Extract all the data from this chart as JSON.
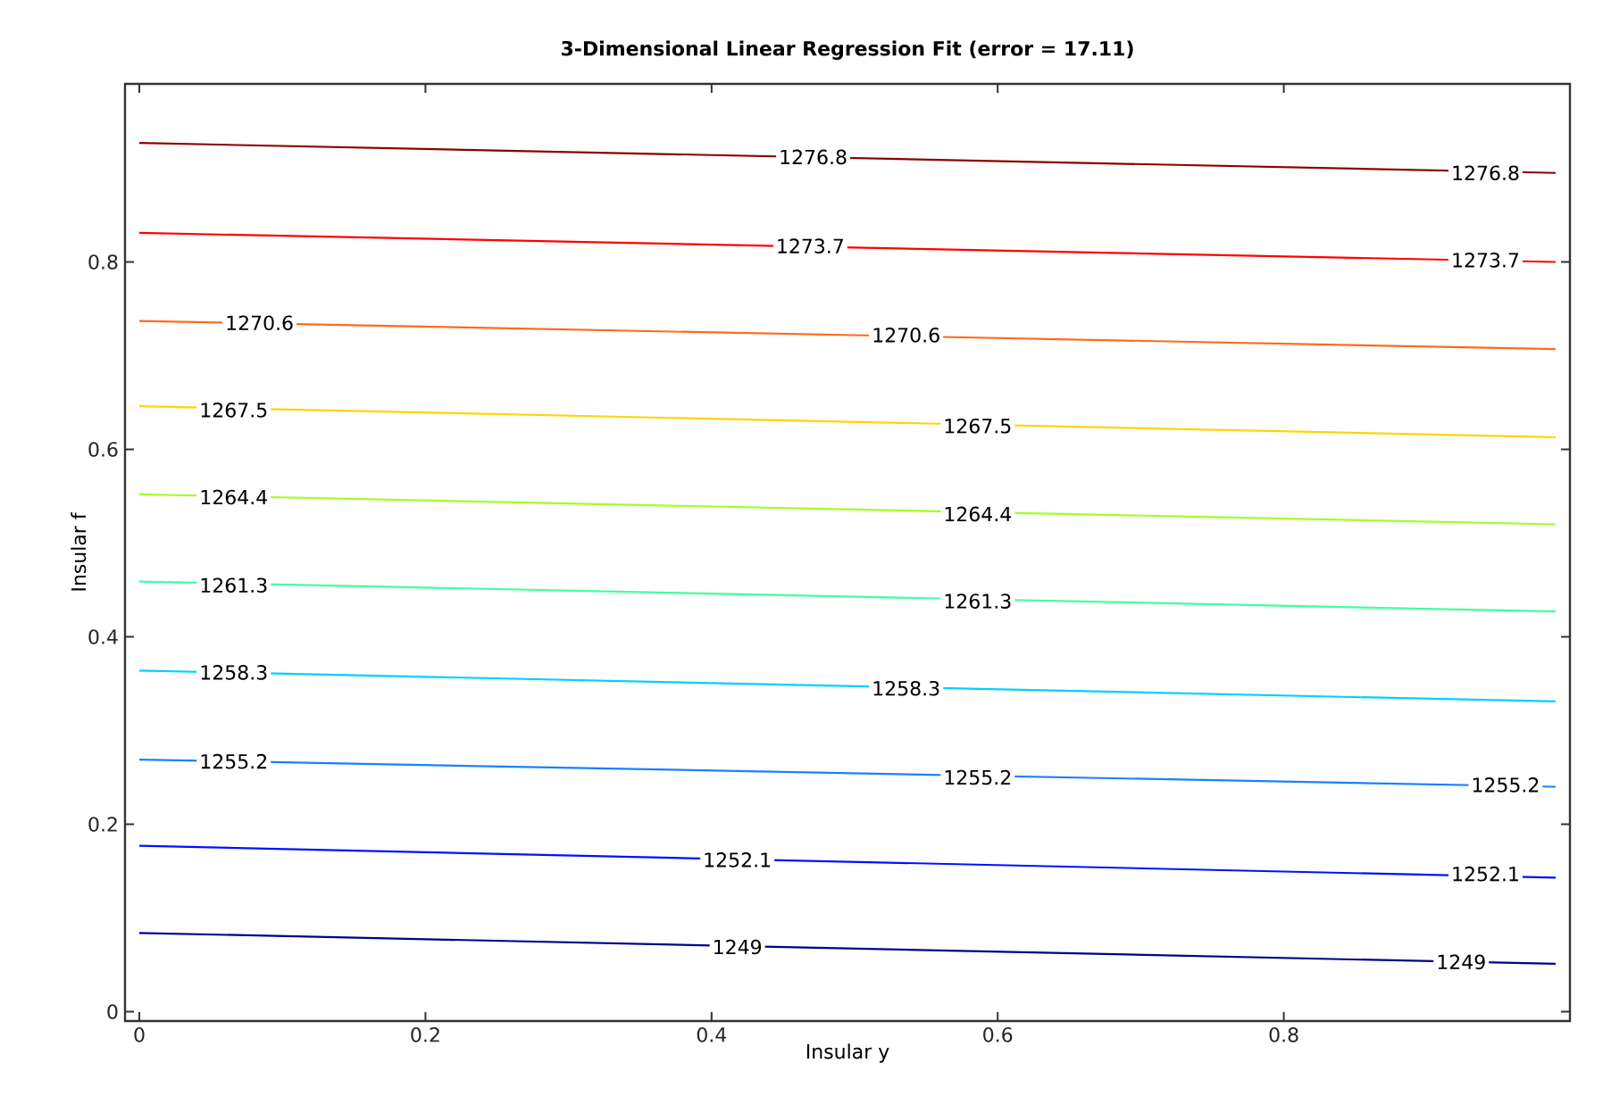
{
  "chart_data": {
    "type": "line",
    "title": "3-Dimensional Linear Regression Fit (error = 17.11)",
    "xlabel": "Insular y",
    "ylabel": "Insular f",
    "xlim": [
      -0.01,
      1.0
    ],
    "ylim": [
      -0.01,
      0.99
    ],
    "xticks": [
      0,
      0.2,
      0.4,
      0.6,
      0.8
    ],
    "yticks": [
      0,
      0.2,
      0.4,
      0.6,
      0.8
    ],
    "grid": false,
    "marker": "none",
    "line_style": "solid",
    "x": [
      0,
      0.99
    ],
    "series": [
      {
        "color": "#8b0000",
        "values": [
          0.927,
          0.895
        ]
      },
      {
        "color": "#ff0000",
        "values": [
          0.831,
          0.8
        ]
      },
      {
        "color": "#ff6a1a",
        "values": [
          0.737,
          0.707
        ]
      },
      {
        "color": "#ffd400",
        "values": [
          0.646,
          0.613
        ]
      },
      {
        "color": "#a0ff20",
        "values": [
          0.552,
          0.52
        ]
      },
      {
        "color": "#40ffa0",
        "values": [
          0.459,
          0.427
        ]
      },
      {
        "color": "#00d0ff",
        "values": [
          0.364,
          0.331
        ]
      },
      {
        "color": "#1a80ff",
        "values": [
          0.269,
          0.24
        ]
      },
      {
        "color": "#0010ff",
        "values": [
          0.177,
          0.143
        ]
      },
      {
        "color": "#00008b",
        "values": [
          0.084,
          0.051
        ]
      }
    ],
    "annotations": [
      {
        "text": "1276.8",
        "x": 0.471,
        "y": 0.912
      },
      {
        "text": "1276.8",
        "x": 0.941,
        "y": 0.895
      },
      {
        "text": "1273.7",
        "x": 0.469,
        "y": 0.817
      },
      {
        "text": "1273.7",
        "x": 0.941,
        "y": 0.802
      },
      {
        "text": "1270.6",
        "x": 0.084,
        "y": 0.735
      },
      {
        "text": "1270.6",
        "x": 0.536,
        "y": 0.722
      },
      {
        "text": "1267.5",
        "x": 0.066,
        "y": 0.642
      },
      {
        "text": "1267.5",
        "x": 0.586,
        "y": 0.625
      },
      {
        "text": "1264.4",
        "x": 0.066,
        "y": 0.549
      },
      {
        "text": "1264.4",
        "x": 0.586,
        "y": 0.531
      },
      {
        "text": "1261.3",
        "x": 0.066,
        "y": 0.455
      },
      {
        "text": "1261.3",
        "x": 0.586,
        "y": 0.438
      },
      {
        "text": "1258.3",
        "x": 0.066,
        "y": 0.362
      },
      {
        "text": "1258.3",
        "x": 0.536,
        "y": 0.345
      },
      {
        "text": "1255.2",
        "x": 0.066,
        "y": 0.267
      },
      {
        "text": "1255.2",
        "x": 0.586,
        "y": 0.25
      },
      {
        "text": "1255.2",
        "x": 0.955,
        "y": 0.242
      },
      {
        "text": "1252.1",
        "x": 0.418,
        "y": 0.162
      },
      {
        "text": "1252.1",
        "x": 0.941,
        "y": 0.147
      },
      {
        "text": "1249",
        "x": 0.418,
        "y": 0.069
      },
      {
        "text": "1249",
        "x": 0.924,
        "y": 0.053
      }
    ]
  }
}
